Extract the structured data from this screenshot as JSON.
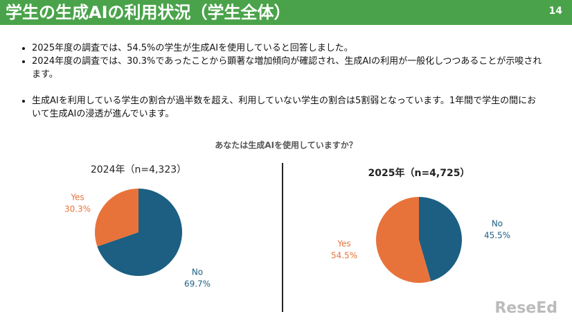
{
  "header": {
    "title": "学生の生成AIの利用状況（学生全体）",
    "page": "14"
  },
  "bullets": [
    "2025年度の調査では、54.5%の学生が生成AIを使用していると回答しました。",
    "2024年度の調査では、30.3%であったことから顕著な増加傾向が確認され、生成AIの利用が一般化しつつあることが示唆されます。",
    "生成AIを利用している学生の割合が過半数を超え、利用していない学生の割合は5割弱となっています。1年間で学生の間において生成AIの浸透が進んでいます。"
  ],
  "question": "あなたは生成AIを使用していますか？",
  "chart_data": [
    {
      "type": "pie",
      "title": "2024年（n=4,323）",
      "categories": [
        "Yes",
        "No"
      ],
      "values": [
        30.3,
        69.7
      ],
      "value_labels": [
        "30.3%",
        "69.7%"
      ],
      "colors": [
        "#e8733a",
        "#1c5f82"
      ]
    },
    {
      "type": "pie",
      "title": "2025年（n=4,725）",
      "categories": [
        "Yes",
        "No"
      ],
      "values": [
        54.5,
        45.5
      ],
      "value_labels": [
        "54.5%",
        "45.5%"
      ],
      "colors": [
        "#e8733a",
        "#1c5f82"
      ]
    }
  ],
  "logo": "ReseEd"
}
